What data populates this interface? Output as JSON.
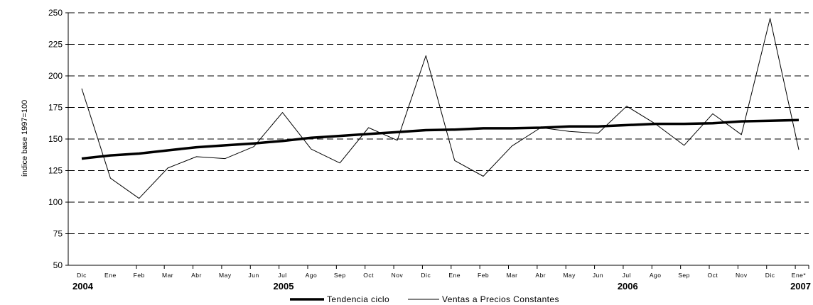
{
  "chart_data": {
    "type": "line",
    "ylabel": "índice base 1997=100",
    "ylim": [
      50,
      250
    ],
    "yticks": [
      50,
      75,
      100,
      125,
      150,
      175,
      200,
      225,
      250
    ],
    "grid": "horizontal-dashed",
    "legend_placement": "bottom-center",
    "categories": [
      "Dic",
      "Ene",
      "Feb",
      "Mar",
      "Abr",
      "May",
      "Jun",
      "Jul",
      "Ago",
      "Sep",
      "Oct",
      "Nov",
      "Dic",
      "Ene",
      "Feb",
      "Mar",
      "Abr",
      "May",
      "Jun",
      "Jul",
      "Ago",
      "Sep",
      "Oct",
      "Nov",
      "Dic",
      "Ene*"
    ],
    "year_labels": [
      {
        "index": 0,
        "label": "2004"
      },
      {
        "index": 7,
        "label": "2005"
      },
      {
        "index": 19,
        "label": "2006"
      },
      {
        "index": 25,
        "label": "2007"
      }
    ],
    "series": [
      {
        "name": "Tendencia ciclo",
        "style": "thick",
        "color": "#000000",
        "values": [
          134.5,
          137,
          138.5,
          141,
          143.5,
          145,
          146.5,
          148.5,
          151,
          152.5,
          154,
          155.5,
          157,
          157.5,
          158.5,
          158.5,
          159,
          160,
          160,
          161,
          162,
          162,
          162.5,
          164,
          164.5,
          165
        ]
      },
      {
        "name": "Ventas a Precios Constantes",
        "style": "thin",
        "color": "#000000",
        "values": [
          190,
          119,
          103,
          127,
          136,
          134.5,
          144,
          171,
          142,
          131,
          159,
          149,
          216,
          133,
          120.5,
          144.5,
          159,
          156,
          154.5,
          176,
          162,
          145,
          170,
          153.5,
          245.5,
          141.5
        ]
      }
    ]
  }
}
